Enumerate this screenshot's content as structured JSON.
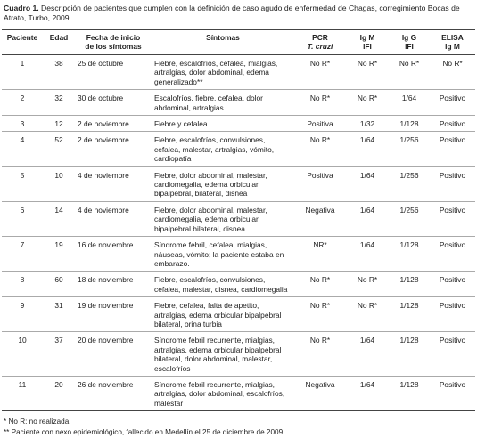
{
  "caption": {
    "label": "Cuadro 1.",
    "text": "Descripción de pacientes que cumplen con la definición de caso agudo de enfermedad de Chagas, corregimiento Bocas de Atrato, Turbo, 2009."
  },
  "table": {
    "header": [
      [
        "Paciente"
      ],
      [
        "Edad"
      ],
      [
        "Fecha de inicio",
        "de los síntomas"
      ],
      [
        "Síntomas"
      ],
      [
        "PCR",
        "T. cruzi"
      ],
      [
        "Ig M",
        "IFI"
      ],
      [
        "Ig G",
        "IFI"
      ],
      [
        "ELISA",
        "Ig M"
      ]
    ],
    "rows": [
      [
        "1",
        "38",
        "25 de octubre",
        "Fiebre, escalofríos, cefalea, mialgias, artralgias, dolor abdominal, edema generalizado**",
        "No R*",
        "No R*",
        "No R*",
        "No R*"
      ],
      [
        "2",
        "32",
        "30 de octubre",
        "Escalofríos, fiebre, cefalea, dolor abdominal, artralgias",
        "No R*",
        "No R*",
        "1/64",
        "Positivo"
      ],
      [
        "3",
        "12",
        "2 de noviembre",
        "Fiebre y cefalea",
        "Positiva",
        "1/32",
        "1/128",
        "Positivo"
      ],
      [
        "4",
        "52",
        "2 de noviembre",
        "Fiebre, escalofríos, convulsiones, cefalea, malestar, artralgias, vómito, cardiopatía",
        "No R*",
        "1/64",
        "1/256",
        "Positivo"
      ],
      [
        "5",
        "10",
        "4 de noviembre",
        "Fiebre, dolor abdominal, malestar, cardiomegalia, edema orbicular bipalpebral, bilateral, disnea",
        "Positiva",
        "1/64",
        "1/256",
        "Positivo"
      ],
      [
        "6",
        "14",
        "4 de noviembre",
        "Fiebre, dolor abdominal, malestar, cardiomegalia, edema orbicular bipalpebral bilateral, disnea",
        "Negativa",
        "1/64",
        "1/256",
        "Positivo"
      ],
      [
        "7",
        "19",
        "16 de noviembre",
        "Síndrome febril, cefalea, mialgias, náuseas, vómito; la paciente estaba en embarazo.",
        "NR*",
        "1/64",
        "1/128",
        "Positivo"
      ],
      [
        "8",
        "60",
        "18 de noviembre",
        "Fiebre, escalofríos, convulsiones, cefalea, malestar, disnea, cardiomegalia",
        "No R*",
        "No R*",
        "1/128",
        "Positivo"
      ],
      [
        "9",
        "31",
        "19 de noviembre",
        "Fiebre, cefalea, falta de apetito, artralgias, edema orbicular bipalpebral bilateral, orina turbia",
        "No R*",
        "No R*",
        "1/128",
        "Positivo"
      ],
      [
        "10",
        "37",
        "20 de noviembre",
        "Síndrome febril recurrente, mialgias, artralgias, edema orbicular bipalpebral bilateral, dolor abdominal, malestar, escalofríos",
        "No R*",
        "1/64",
        "1/128",
        "Positivo"
      ],
      [
        "11",
        "20",
        "26 de noviembre",
        "Síndrome febril recurrente, mialgias, artralgias, dolor abdominal, escalofríos, malestar",
        "Negativa",
        "1/64",
        "1/128",
        "Positivo"
      ]
    ]
  },
  "footnotes": [
    "*   No R: no realizada",
    "** Paciente con nexo epidemiológico, fallecido en Medellín el 25 de diciembre de 2009"
  ]
}
